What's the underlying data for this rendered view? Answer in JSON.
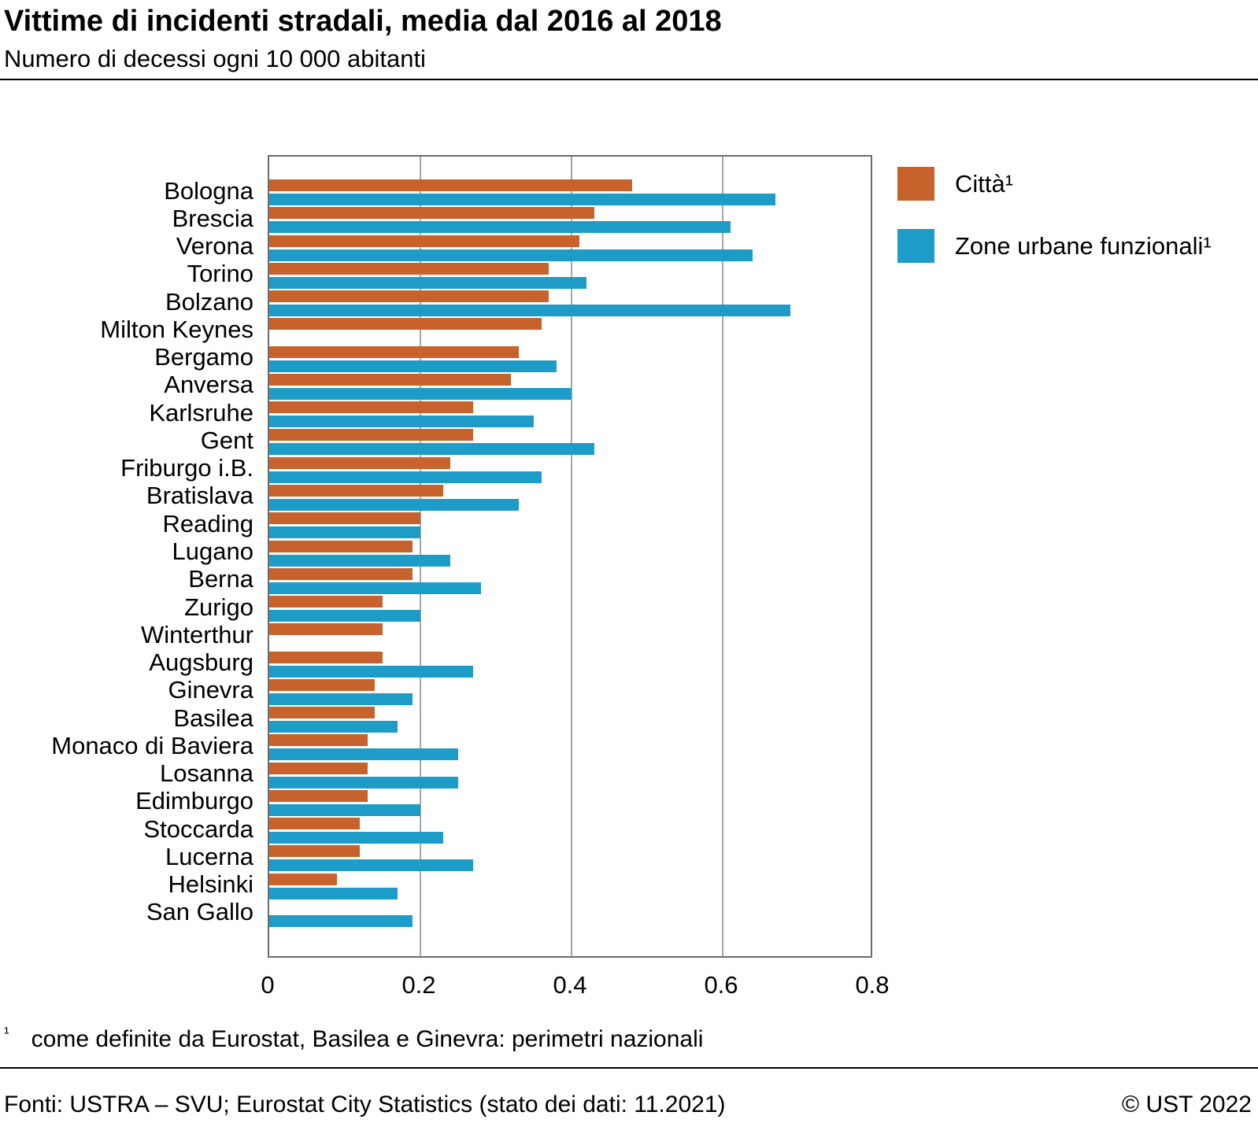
{
  "header": {
    "title": "Vittime di incidenti stradali, media dal 2016 al 2018",
    "subtitle": "Numero di decessi ogni 10 000 abitanti"
  },
  "chart_data": {
    "type": "bar",
    "orientation": "horizontal",
    "title": "Vittime di incidenti stradali, media dal 2016 al 2018",
    "subtitle": "Numero di decessi ogni 10 000 abitanti",
    "xlabel": "",
    "ylabel": "",
    "xlim": [
      0,
      0.8
    ],
    "x_ticks": [
      "0",
      "0.2",
      "0.4",
      "0.6",
      "0.8"
    ],
    "x_tick_values": [
      0,
      0.2,
      0.4,
      0.6,
      0.8
    ],
    "grid": true,
    "legend_position": "top-right",
    "categories": [
      "Bologna",
      "Brescia",
      "Verona",
      "Torino",
      "Bolzano",
      "Milton Keynes",
      "Bergamo",
      "Anversa",
      "Karlsruhe",
      "Gent",
      "Friburgo i.B.",
      "Bratislava",
      "Reading",
      "Lugano",
      "Berna",
      "Zurigo",
      "Winterthur",
      "Augsburg",
      "Ginevra",
      "Basilea",
      "Monaco di Baviera",
      "Losanna",
      "Edimburgo",
      "Stoccarda",
      "Lucerna",
      "Helsinki",
      "San Gallo"
    ],
    "series": [
      {
        "name": "Città¹",
        "color": "#c8622d",
        "values": [
          0.48,
          0.43,
          0.41,
          0.37,
          0.37,
          0.36,
          0.33,
          0.32,
          0.27,
          0.27,
          0.24,
          0.23,
          0.2,
          0.19,
          0.19,
          0.15,
          0.15,
          0.15,
          0.14,
          0.14,
          0.13,
          0.13,
          0.13,
          0.12,
          0.12,
          0.09,
          null
        ]
      },
      {
        "name": "Zone urbane funzionali¹",
        "color": "#1e9cc8",
        "values": [
          0.67,
          0.61,
          0.64,
          0.42,
          0.69,
          null,
          0.38,
          0.4,
          0.35,
          0.43,
          0.36,
          0.33,
          0.2,
          0.24,
          0.28,
          0.2,
          null,
          0.27,
          0.19,
          0.17,
          0.25,
          0.25,
          0.2,
          0.23,
          0.27,
          0.17,
          0.19
        ]
      }
    ]
  },
  "footnote": {
    "marker": "¹",
    "text": "come definite da Eurostat, Basilea e Ginevra: perimetri nazionali"
  },
  "footer": {
    "source": "Fonti: USTRA – SVU; Eurostat City Statistics (stato dei dati: 11.2021)",
    "copyright": "© UST 2022"
  }
}
